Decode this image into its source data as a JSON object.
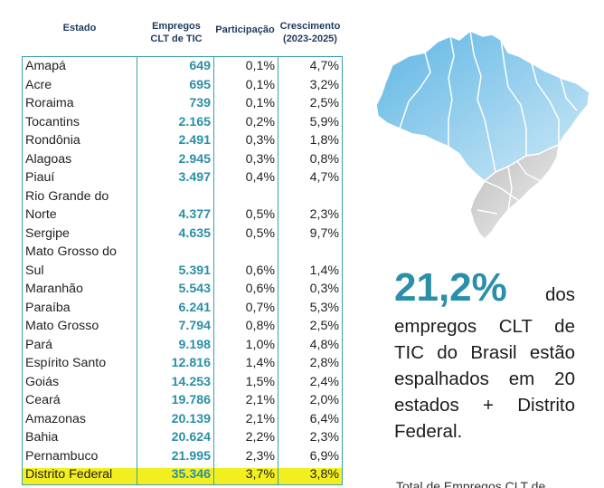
{
  "table": {
    "headers": {
      "estado": "Estado",
      "empregos_line1": "Empregos",
      "empregos_line2": "CLT de TIC",
      "participacao": "Participação",
      "crescimento_line1": "Crescimento",
      "crescimento_line2": "(2023-2025)"
    },
    "rows": [
      {
        "estado": "Amapá",
        "empregos": "649",
        "participacao": "0,1%",
        "crescimento": "4,7%"
      },
      {
        "estado": "Acre",
        "empregos": "695",
        "participacao": "0,1%",
        "crescimento": "3,2%"
      },
      {
        "estado": "Roraima",
        "empregos": "739",
        "participacao": "0,1%",
        "crescimento": "2,5%"
      },
      {
        "estado": "Tocantins",
        "empregos": "2.165",
        "participacao": "0,2%",
        "crescimento": "5,9%"
      },
      {
        "estado": "Rondônia",
        "empregos": "2.491",
        "participacao": "0,3%",
        "crescimento": "1,8%"
      },
      {
        "estado": "Alagoas",
        "empregos": "2.945",
        "participacao": "0,3%",
        "crescimento": "0,8%"
      },
      {
        "estado": "Piauí",
        "empregos": "3.497",
        "participacao": "0,4%",
        "crescimento": "4,7%"
      },
      {
        "estado": "Rio Grande do Norte",
        "empregos": "4.377",
        "participacao": "0,5%",
        "crescimento": "2,3%"
      },
      {
        "estado": "Sergipe",
        "empregos": "4.635",
        "participacao": "0,5%",
        "crescimento": "9,7%"
      },
      {
        "estado": "Mato Grosso do Sul",
        "empregos": "5.391",
        "participacao": "0,6%",
        "crescimento": "1,4%"
      },
      {
        "estado": "Maranhão",
        "empregos": "5.543",
        "participacao": "0,6%",
        "crescimento": "0,3%"
      },
      {
        "estado": "Paraíba",
        "empregos": "6.241",
        "participacao": "0,7%",
        "crescimento": "5,3%"
      },
      {
        "estado": "Mato Grosso",
        "empregos": "7.794",
        "participacao": "0,8%",
        "crescimento": "2,5%"
      },
      {
        "estado": "Pará",
        "empregos": "9.198",
        "participacao": "1,0%",
        "crescimento": "4,8%"
      },
      {
        "estado": "Espírito Santo",
        "empregos": "12.816",
        "participacao": "1,4%",
        "crescimento": "2,8%"
      },
      {
        "estado": "Goiás",
        "empregos": "14.253",
        "participacao": "1,5%",
        "crescimento": "2,4%"
      },
      {
        "estado": "Ceará",
        "empregos": "19.786",
        "participacao": "2,1%",
        "crescimento": "2,0%"
      },
      {
        "estado": "Amazonas",
        "empregos": "20.139",
        "participacao": "2,1%",
        "crescimento": "6,4%"
      },
      {
        "estado": "Bahia",
        "empregos": "20.624",
        "participacao": "2,2%",
        "crescimento": "2,3%"
      },
      {
        "estado": "Pernambuco",
        "empregos": "21.995",
        "participacao": "2,3%",
        "crescimento": "6,9%"
      },
      {
        "estado": "Distrito Federal",
        "empregos": "35.346",
        "participacao": "3,7%",
        "crescimento": "3,8%"
      }
    ]
  },
  "headline": {
    "percent": "21,2%",
    "word_after": "dos",
    "text": "empregos CLT de TIC do Brasil estão espalhados em 20 estados + Distrito Federal."
  },
  "footer_cut_text": "Total de Empregos CLT de",
  "colors": {
    "accent": "#2a8fa8",
    "highlight": "#f2ee1f",
    "table_border": "#3aa0ad",
    "header_text": "#1f3a5f"
  },
  "icons": [
    "brazil-map-icon"
  ]
}
